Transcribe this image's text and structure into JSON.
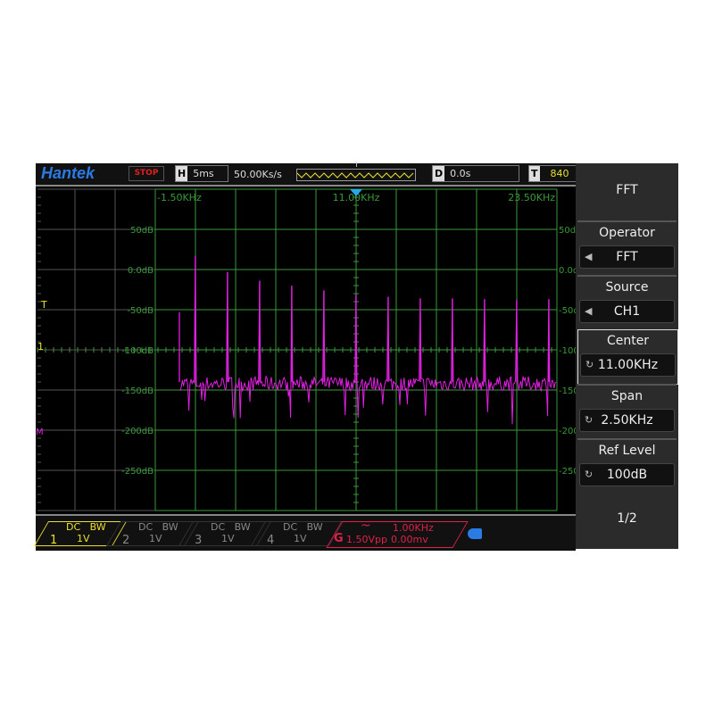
{
  "header": {
    "brand": "Hantek",
    "run_state": "STOP",
    "horizontal": {
      "letter": "H",
      "value": "5ms"
    },
    "sample_rate": "50.00Ks/s",
    "trigger_marker": "T",
    "delay": {
      "letter": "D",
      "value": "0.0s"
    },
    "trigger": {
      "letter": "T",
      "value": "840"
    }
  },
  "side_markers": {
    "trigger": "T",
    "ch1": "1",
    "math": "M"
  },
  "menu": {
    "title": "FFT",
    "items": [
      {
        "label": "Operator",
        "value": "FFT",
        "icon": "left-arrow-icon",
        "selected": false
      },
      {
        "label": "Source",
        "value": "CH1",
        "icon": "left-arrow-icon",
        "selected": false
      },
      {
        "label": "Center",
        "value": "11.00KHz",
        "icon": "knob-icon",
        "selected": true
      },
      {
        "label": "Span",
        "value": "2.50KHz",
        "icon": "knob-icon",
        "selected": false
      },
      {
        "label": "Ref Level",
        "value": "100dB",
        "icon": "knob-icon",
        "selected": false
      }
    ],
    "page": "1/2"
  },
  "channels": [
    {
      "num": "1",
      "coupling": "DC",
      "bw": "BW",
      "scale": "1V",
      "color": "#e8e030",
      "active": true
    },
    {
      "num": "2",
      "coupling": "DC",
      "bw": "BW",
      "scale": "1V",
      "color": "#888888",
      "active": false
    },
    {
      "num": "3",
      "coupling": "DC",
      "bw": "BW",
      "scale": "1V",
      "color": "#888888",
      "active": false
    },
    {
      "num": "4",
      "coupling": "DC",
      "bw": "BW",
      "scale": "1V",
      "color": "#888888",
      "active": false
    }
  ],
  "generator": {
    "letter": "G",
    "wave": "~",
    "freq": "1.00KHz",
    "amp": "1.50Vpp",
    "offset": "0.00mv",
    "color": "#e0204a"
  },
  "chart_data": {
    "type": "line",
    "x_ticks": [
      "-1.50KHz",
      "11.00KHz",
      "23.50KHz"
    ],
    "xlim_khz": [
      -1.5,
      23.5
    ],
    "y_ticks": [
      "50dB",
      "0.0dB",
      "-50dB",
      "-100dB",
      "-150dB",
      "-200dB",
      "-250dB"
    ],
    "ylim_db": [
      -300,
      100
    ],
    "grid": true,
    "series": [
      {
        "color": "#e020e0",
        "peaks_khz": [
          0,
          1,
          3,
          5,
          7,
          9,
          11,
          13,
          15,
          17,
          19,
          21,
          23
        ],
        "peaks_db": [
          -53,
          17,
          -3,
          -14,
          -20,
          -26,
          -31,
          -34,
          -36,
          -36,
          -37,
          -38,
          -37
        ],
        "noise_floor_db": [
          -165,
          -125
        ]
      }
    ]
  }
}
